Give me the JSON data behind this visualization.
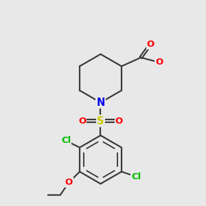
{
  "bg_color": "#e8e8e8",
  "atom_colors": {
    "C": "#3a3a3a",
    "N": "#0000ee",
    "O": "#ff0000",
    "S": "#cccc00",
    "Cl": "#00bb00"
  },
  "bond_color": "#3a3a3a",
  "bond_width": 1.6,
  "figsize": [
    3.0,
    3.0
  ],
  "dpi": 100,
  "font_size": 9.5
}
